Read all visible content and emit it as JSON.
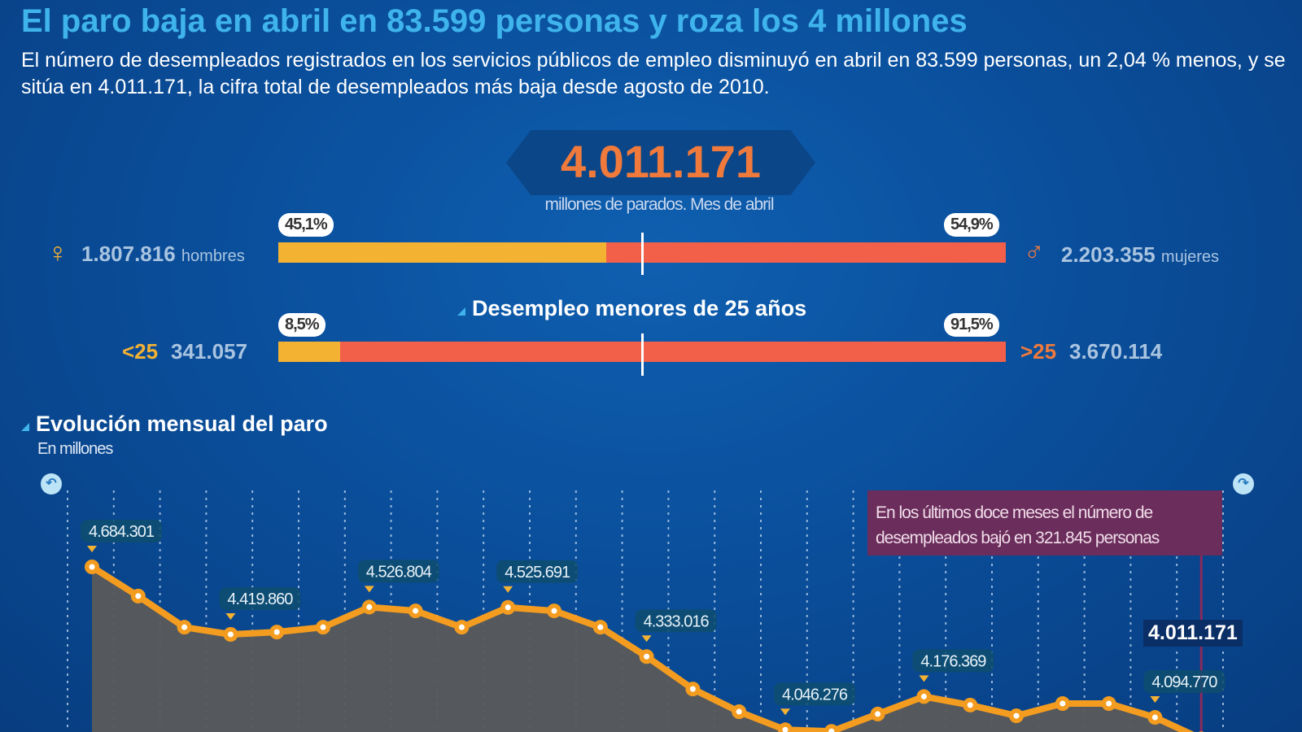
{
  "header": {
    "title": "El paro baja en abril en 83.599 personas y roza los 4 millones",
    "subtitle": "El número de desempleados registrados en los servicios públicos de empleo disminuyó en abril en 83.599 personas, un 2,04 % menos, y se sitúa en 4.011.171, la cifra total de desempleados más baja desde agosto de 2010."
  },
  "total": {
    "value": "4.011.171",
    "caption": "millones de parados. Mes de abril"
  },
  "gender": {
    "left_pct": "45,1%",
    "right_pct": "54,9%",
    "left_fraction": 0.451,
    "left_value": "1.807.816",
    "left_label": "hombres",
    "right_value": "2.203.355",
    "right_label": "mujeres",
    "left_icon": "female-symbol-icon",
    "right_icon": "male-symbol-icon"
  },
  "age": {
    "title": "Desempleo menores de 25 años",
    "left_pct": "8,5%",
    "right_pct": "91,5%",
    "left_fraction": 0.085,
    "left_tag": "<25",
    "left_value": "341.057",
    "right_tag": ">25",
    "right_value": "3.670.114"
  },
  "colors": {
    "yellow": "#f4b233",
    "red": "#f2604a",
    "orange_line": "#f39c1f",
    "area": "#5a5a5a",
    "note_bg": "#6b2d5c"
  },
  "chart_data": {
    "type": "area",
    "title": "Evolución mensual del paro",
    "subtitle": "En millones",
    "values": [
      4684301,
      4570000,
      4448000,
      4419860,
      4429000,
      4448000,
      4526804,
      4512000,
      4448000,
      4525691,
      4512000,
      4448000,
      4333016,
      4206000,
      4117000,
      4046276,
      4040000,
      4108000,
      4176369,
      4143000,
      4101000,
      4149000,
      4149000,
      4094770,
      4011171
    ],
    "labels": {
      "0": "4.684.301",
      "3": "4.419.860",
      "6": "4.526.804",
      "9": "4.525.691",
      "12": "4.333.016",
      "15": "4.046.276",
      "18": "4.176.369",
      "23": "4.094.770"
    },
    "last_label": "4.011.171",
    "annotation": "En los últimos doce meses el número de desempleados bajó en 321.845 personas",
    "grid": "vertical dotted"
  }
}
